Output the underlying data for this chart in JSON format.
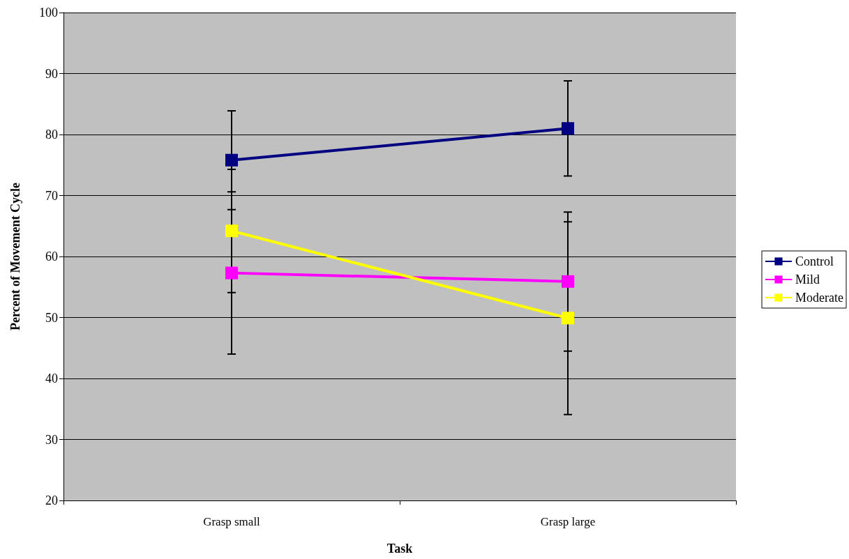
{
  "chart_data": {
    "type": "line",
    "xlabel": "Task",
    "ylabel": "Percent of Movement Cycle",
    "categories": [
      "Grasp small",
      "Grasp large"
    ],
    "series": [
      {
        "name": "Control",
        "color": "#000080",
        "values": [
          75.8,
          81.0
        ],
        "errors": [
          8.1,
          7.8
        ]
      },
      {
        "name": "Mild",
        "color": "#ff00ff",
        "values": [
          57.3,
          55.9
        ],
        "errors": [
          13.3,
          11.4
        ]
      },
      {
        "name": "Moderate",
        "color": "#ffff00",
        "values": [
          64.2,
          49.9
        ],
        "errors": [
          10.1,
          15.8
        ]
      }
    ],
    "ylim": [
      20,
      100
    ],
    "yticks": [
      20,
      30,
      40,
      50,
      60,
      70,
      80,
      90,
      100
    ],
    "grid": "y",
    "legend": "right",
    "marker": "square",
    "line_style": "solid"
  }
}
